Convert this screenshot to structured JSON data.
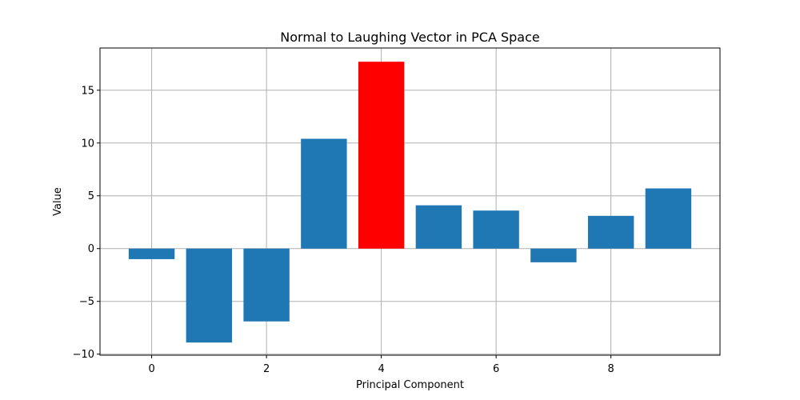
{
  "chart_data": {
    "type": "bar",
    "title": "Normal to Laughing Vector in PCA Space",
    "xlabel": "Principal Component",
    "ylabel": "Value",
    "categories": [
      0,
      1,
      2,
      3,
      4,
      5,
      6,
      7,
      8,
      9
    ],
    "values": [
      -1.0,
      -8.9,
      -6.9,
      10.4,
      17.7,
      4.1,
      3.6,
      -1.3,
      3.1,
      5.7
    ],
    "xlim": [
      -0.9,
      9.9
    ],
    "ylim": [
      -10.1,
      19.0
    ],
    "xticks": [
      0,
      2,
      4,
      6,
      8
    ],
    "yticks": [
      -10,
      -5,
      0,
      5,
      10,
      15
    ],
    "ytick_labels": [
      "−10",
      "−5",
      "0",
      "5",
      "10",
      "15"
    ],
    "grid": true,
    "bar_color": "#1f77b4",
    "highlight_index": 4,
    "highlight_color": "#ff0000"
  }
}
